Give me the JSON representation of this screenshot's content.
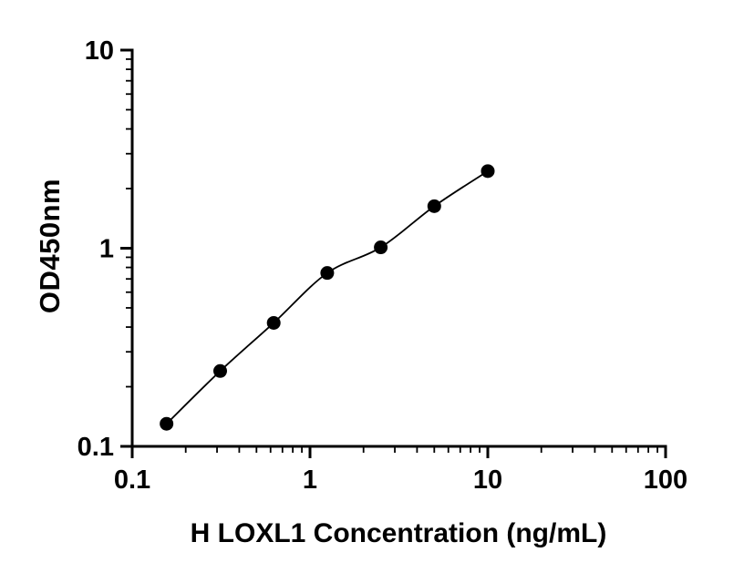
{
  "chart_data": {
    "type": "scatter",
    "title": "",
    "xlabel": "H LOXL1 Concentration (ng/mL)",
    "ylabel": "OD450nm",
    "xscale": "log",
    "yscale": "log",
    "xlim": [
      0.1,
      100
    ],
    "ylim": [
      0.1,
      10
    ],
    "grid": false,
    "legend": null,
    "x": [
      0.156,
      0.3125,
      0.625,
      1.25,
      2.5,
      5,
      10
    ],
    "y": [
      0.13,
      0.24,
      0.42,
      0.75,
      1.01,
      1.63,
      2.45
    ],
    "fit_line": true,
    "x_ticks": [
      {
        "value": 0.1,
        "label": "0.1"
      },
      {
        "value": 1,
        "label": "1"
      },
      {
        "value": 10,
        "label": "10"
      },
      {
        "value": 100,
        "label": "100"
      }
    ],
    "y_ticks": [
      {
        "value": 0.1,
        "label": "0.1"
      },
      {
        "value": 1,
        "label": "1"
      },
      {
        "value": 10,
        "label": "10"
      }
    ],
    "marker_color": "#000000",
    "line_color": "#000000",
    "axis_color": "#000000",
    "background_color": "#ffffff"
  }
}
